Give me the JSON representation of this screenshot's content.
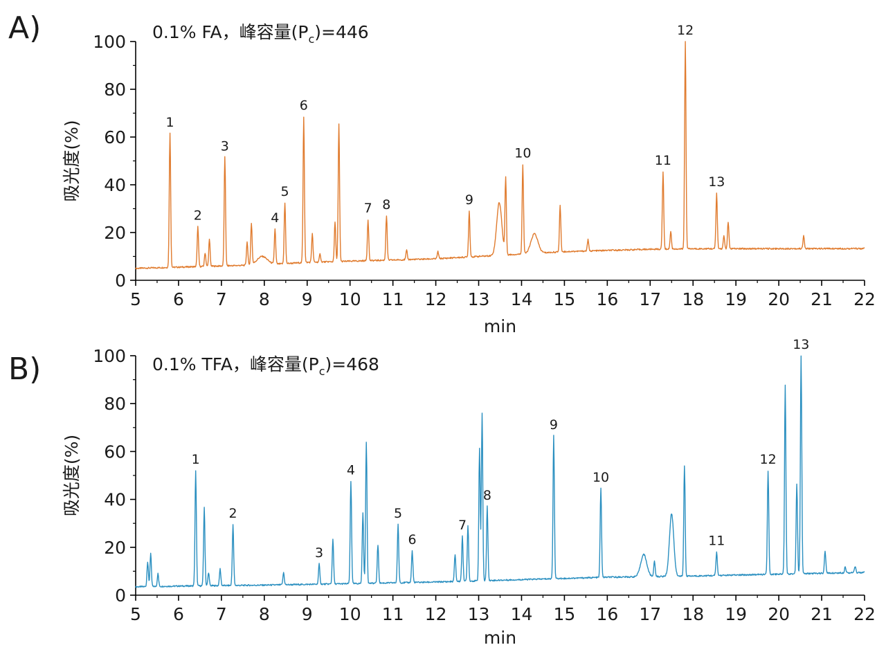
{
  "chart_data": [
    {
      "type": "line",
      "panel_label": "A)",
      "annotation": {
        "text_before": "0.1% FA，峰容量(P",
        "subscript": "c",
        "text_after": ")=446"
      },
      "xlabel": "min",
      "ylabel": "吸光度(%)",
      "xlim": [
        5,
        22
      ],
      "ylim": [
        0,
        100
      ],
      "xticks": [
        5,
        6,
        7,
        8,
        9,
        10,
        11,
        12,
        13,
        14,
        15,
        16,
        17,
        18,
        19,
        20,
        21,
        22
      ],
      "yticks": [
        0,
        20,
        40,
        60,
        80,
        100
      ],
      "grid": false,
      "color": "#e07b2e",
      "baseline": [
        [
          5.0,
          5.0
        ],
        [
          6.0,
          5.5
        ],
        [
          8.0,
          6.5
        ],
        [
          9.0,
          7.5
        ],
        [
          10.0,
          8.0
        ],
        [
          11.0,
          8.5
        ],
        [
          12.0,
          9.0
        ],
        [
          13.0,
          10.0
        ],
        [
          14.0,
          11.0
        ],
        [
          15.0,
          12.0
        ],
        [
          16.0,
          12.5
        ],
        [
          17.0,
          13.0
        ],
        [
          18.0,
          13.2
        ],
        [
          22.0,
          13.3
        ]
      ],
      "peaks": [
        {
          "x": 5.8,
          "y": 61.5,
          "label": "1"
        },
        {
          "x": 6.45,
          "y": 22.5,
          "label": "2"
        },
        {
          "x": 6.62,
          "y": 11.5
        },
        {
          "x": 6.72,
          "y": 17.0
        },
        {
          "x": 7.08,
          "y": 51.5,
          "label": "3"
        },
        {
          "x": 7.6,
          "y": 16.0
        },
        {
          "x": 7.7,
          "y": 23.5
        },
        {
          "x": 7.95,
          "y": 10.0,
          "w": 0.12
        },
        {
          "x": 8.25,
          "y": 21.5,
          "label": "4"
        },
        {
          "x": 8.48,
          "y": 32.5,
          "label": "5"
        },
        {
          "x": 8.92,
          "y": 68.5,
          "label": "6"
        },
        {
          "x": 9.12,
          "y": 19.5
        },
        {
          "x": 9.3,
          "y": 11.0
        },
        {
          "x": 9.65,
          "y": 24.5
        },
        {
          "x": 9.74,
          "y": 65.5
        },
        {
          "x": 10.42,
          "y": 25.5,
          "label": "7"
        },
        {
          "x": 10.85,
          "y": 27.0,
          "label": "8"
        },
        {
          "x": 11.32,
          "y": 12.5
        },
        {
          "x": 12.05,
          "y": 12.0
        },
        {
          "x": 12.78,
          "y": 29.0,
          "label": "9"
        },
        {
          "x": 13.48,
          "y": 32.5,
          "w": 0.06
        },
        {
          "x": 13.63,
          "y": 42.5
        },
        {
          "x": 14.03,
          "y": 48.5,
          "label": "10"
        },
        {
          "x": 14.3,
          "y": 19.5,
          "w": 0.08
        },
        {
          "x": 14.9,
          "y": 31.5
        },
        {
          "x": 15.55,
          "y": 17.0
        },
        {
          "x": 17.3,
          "y": 45.5,
          "label": "11"
        },
        {
          "x": 17.48,
          "y": 20.5
        },
        {
          "x": 17.82,
          "y": 100.0,
          "label": "12"
        },
        {
          "x": 18.55,
          "y": 36.5,
          "label": "13"
        },
        {
          "x": 18.72,
          "y": 18.5
        },
        {
          "x": 18.82,
          "y": 24.5
        },
        {
          "x": 20.58,
          "y": 18.5
        }
      ]
    },
    {
      "type": "line",
      "panel_label": "B)",
      "annotation": {
        "text_before": "0.1% TFA，峰容量(P",
        "subscript": "c",
        "text_after": ")=468"
      },
      "xlabel": "min",
      "ylabel": "吸光度(%)",
      "xlim": [
        5,
        22
      ],
      "ylim": [
        0,
        100
      ],
      "xticks": [
        5,
        6,
        7,
        8,
        9,
        10,
        11,
        12,
        13,
        14,
        15,
        16,
        17,
        18,
        19,
        20,
        21,
        22
      ],
      "yticks": [
        0,
        20,
        40,
        60,
        80,
        100
      ],
      "grid": false,
      "color": "#2a8fc0",
      "baseline": [
        [
          5.0,
          3.5
        ],
        [
          6.0,
          3.8
        ],
        [
          8.0,
          4.2
        ],
        [
          10.0,
          4.8
        ],
        [
          12.0,
          5.5
        ],
        [
          14.0,
          6.5
        ],
        [
          16.0,
          7.5
        ],
        [
          18.0,
          8.0
        ],
        [
          20.0,
          8.8
        ],
        [
          22.0,
          9.5
        ]
      ],
      "peaks": [
        {
          "x": 5.28,
          "y": 14.0
        },
        {
          "x": 5.35,
          "y": 17.5
        },
        {
          "x": 5.52,
          "y": 9.0
        },
        {
          "x": 6.4,
          "y": 52.0,
          "label": "1"
        },
        {
          "x": 6.6,
          "y": 36.5
        },
        {
          "x": 6.7,
          "y": 9.5
        },
        {
          "x": 6.97,
          "y": 11.0
        },
        {
          "x": 7.27,
          "y": 29.5,
          "label": "2"
        },
        {
          "x": 8.45,
          "y": 9.5
        },
        {
          "x": 9.28,
          "y": 13.0,
          "label": "3"
        },
        {
          "x": 9.6,
          "y": 23.5
        },
        {
          "x": 10.02,
          "y": 47.5,
          "label": "4"
        },
        {
          "x": 10.3,
          "y": 34.5
        },
        {
          "x": 10.38,
          "y": 64.0
        },
        {
          "x": 10.65,
          "y": 21.0
        },
        {
          "x": 11.12,
          "y": 29.5,
          "label": "5"
        },
        {
          "x": 11.45,
          "y": 18.5,
          "label": "6"
        },
        {
          "x": 12.45,
          "y": 17.0
        },
        {
          "x": 12.62,
          "y": 24.5,
          "label": "7"
        },
        {
          "x": 12.75,
          "y": 29.0
        },
        {
          "x": 13.02,
          "y": 61.0
        },
        {
          "x": 13.08,
          "y": 76.0
        },
        {
          "x": 13.2,
          "y": 37.0,
          "label": "8"
        },
        {
          "x": 14.75,
          "y": 66.5,
          "label": "9"
        },
        {
          "x": 15.85,
          "y": 44.5,
          "label": "10"
        },
        {
          "x": 16.85,
          "y": 17.0,
          "w": 0.07
        },
        {
          "x": 17.1,
          "y": 14.5
        },
        {
          "x": 17.5,
          "y": 34.0,
          "w": 0.05
        },
        {
          "x": 17.8,
          "y": 54.0
        },
        {
          "x": 18.55,
          "y": 18.0,
          "label": "11"
        },
        {
          "x": 19.75,
          "y": 52.0,
          "label": "12"
        },
        {
          "x": 20.15,
          "y": 88.0
        },
        {
          "x": 20.42,
          "y": 46.5
        },
        {
          "x": 20.52,
          "y": 100.0,
          "label": "13"
        },
        {
          "x": 21.08,
          "y": 18.5
        },
        {
          "x": 21.55,
          "y": 12.0
        },
        {
          "x": 21.78,
          "y": 12.0
        }
      ]
    }
  ]
}
